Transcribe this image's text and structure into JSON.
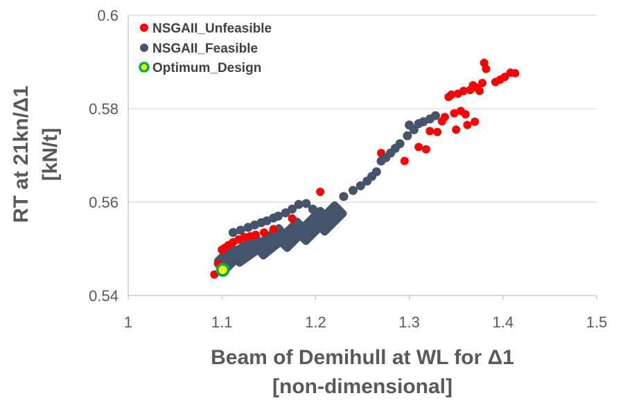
{
  "chart_data": {
    "type": "scatter",
    "title": "",
    "xlabel": "Beam of Demihull at WL for Δ1",
    "xlabel_line2": "[non-dimensional]",
    "ylabel": "RT at 21kn/Δ1",
    "ylabel_line2": "[kN/t]",
    "xlim": [
      1,
      1.5
    ],
    "ylim": [
      0.54,
      0.6
    ],
    "x_ticks": [
      "1",
      "1.1",
      "1.2",
      "1.3",
      "1.4",
      "1.5"
    ],
    "y_ticks": [
      "0.54",
      "0.56",
      "0.58",
      "0.6"
    ],
    "grid": "horizontal",
    "legend_position": "top-left",
    "series": [
      {
        "name": "NSGAII_Unfeasible",
        "color": "#ff0000",
        "points": [
          [
            1.092,
            0.5445
          ],
          [
            1.096,
            0.5468
          ],
          [
            1.1,
            0.5498
          ],
          [
            1.103,
            0.5502
          ],
          [
            1.107,
            0.5508
          ],
          [
            1.112,
            0.5514
          ],
          [
            1.118,
            0.552
          ],
          [
            1.124,
            0.5525
          ],
          [
            1.13,
            0.5527
          ],
          [
            1.136,
            0.553
          ],
          [
            1.145,
            0.5535
          ],
          [
            1.155,
            0.5542
          ],
          [
            1.175,
            0.5565
          ],
          [
            1.205,
            0.5622
          ],
          [
            1.27,
            0.5705
          ],
          [
            1.295,
            0.5688
          ],
          [
            1.31,
            0.5718
          ],
          [
            1.318,
            0.5713
          ],
          [
            1.322,
            0.5752
          ],
          [
            1.33,
            0.575
          ],
          [
            1.335,
            0.5773
          ],
          [
            1.338,
            0.5782
          ],
          [
            1.342,
            0.5825
          ],
          [
            1.345,
            0.583
          ],
          [
            1.348,
            0.579
          ],
          [
            1.35,
            0.5755
          ],
          [
            1.352,
            0.5832
          ],
          [
            1.355,
            0.5795
          ],
          [
            1.358,
            0.5838
          ],
          [
            1.36,
            0.5788
          ],
          [
            1.362,
            0.5765
          ],
          [
            1.365,
            0.584
          ],
          [
            1.368,
            0.585
          ],
          [
            1.37,
            0.5772
          ],
          [
            1.372,
            0.5845
          ],
          [
            1.375,
            0.5838
          ],
          [
            1.378,
            0.5855
          ],
          [
            1.38,
            0.5898
          ],
          [
            1.382,
            0.5885
          ],
          [
            1.392,
            0.5857
          ],
          [
            1.397,
            0.5862
          ],
          [
            1.402,
            0.5868
          ],
          [
            1.408,
            0.5877
          ],
          [
            1.413,
            0.5876
          ]
        ]
      },
      {
        "name": "NSGAII_Feasible",
        "color": "#44546a",
        "points": [
          [
            1.112,
            0.5535
          ],
          [
            1.12,
            0.554
          ],
          [
            1.128,
            0.5546
          ],
          [
            1.135,
            0.5551
          ],
          [
            1.142,
            0.5556
          ],
          [
            1.148,
            0.556
          ],
          [
            1.155,
            0.5566
          ],
          [
            1.16,
            0.557
          ],
          [
            1.168,
            0.5577
          ],
          [
            1.175,
            0.5585
          ],
          [
            1.182,
            0.5595
          ],
          [
            1.19,
            0.5597
          ],
          [
            1.197,
            0.5585
          ],
          [
            1.2,
            0.5575
          ],
          [
            1.205,
            0.558
          ],
          [
            1.212,
            0.5575
          ],
          [
            1.22,
            0.5588
          ],
          [
            1.23,
            0.5612
          ],
          [
            1.24,
            0.5625
          ],
          [
            1.248,
            0.5635
          ],
          [
            1.255,
            0.5645
          ],
          [
            1.26,
            0.5655
          ],
          [
            1.265,
            0.5665
          ],
          [
            1.27,
            0.5688
          ],
          [
            1.275,
            0.5695
          ],
          [
            1.28,
            0.5705
          ],
          [
            1.285,
            0.5715
          ],
          [
            1.29,
            0.5725
          ],
          [
            1.298,
            0.5742
          ],
          [
            1.305,
            0.5755
          ],
          [
            1.31,
            0.5768
          ],
          [
            1.315,
            0.5772
          ],
          [
            1.322,
            0.5778
          ],
          [
            1.328,
            0.5785
          ],
          [
            1.3,
            0.5765
          ]
        ],
        "clouds": [
          [
            1.1,
            0.5465,
            1.115,
            0.5495
          ],
          [
            1.115,
            0.548,
            1.14,
            0.5515
          ],
          [
            1.14,
            0.5495,
            1.165,
            0.5535
          ],
          [
            1.165,
            0.551,
            1.185,
            0.555
          ],
          [
            1.185,
            0.5525,
            1.205,
            0.5565
          ],
          [
            1.205,
            0.5545,
            1.225,
            0.5585
          ]
        ]
      },
      {
        "name": "Optimum_Design",
        "color": "#ffff00",
        "edge_color": "#00b050",
        "points": [
          [
            1.101,
            0.5455
          ]
        ]
      }
    ]
  }
}
